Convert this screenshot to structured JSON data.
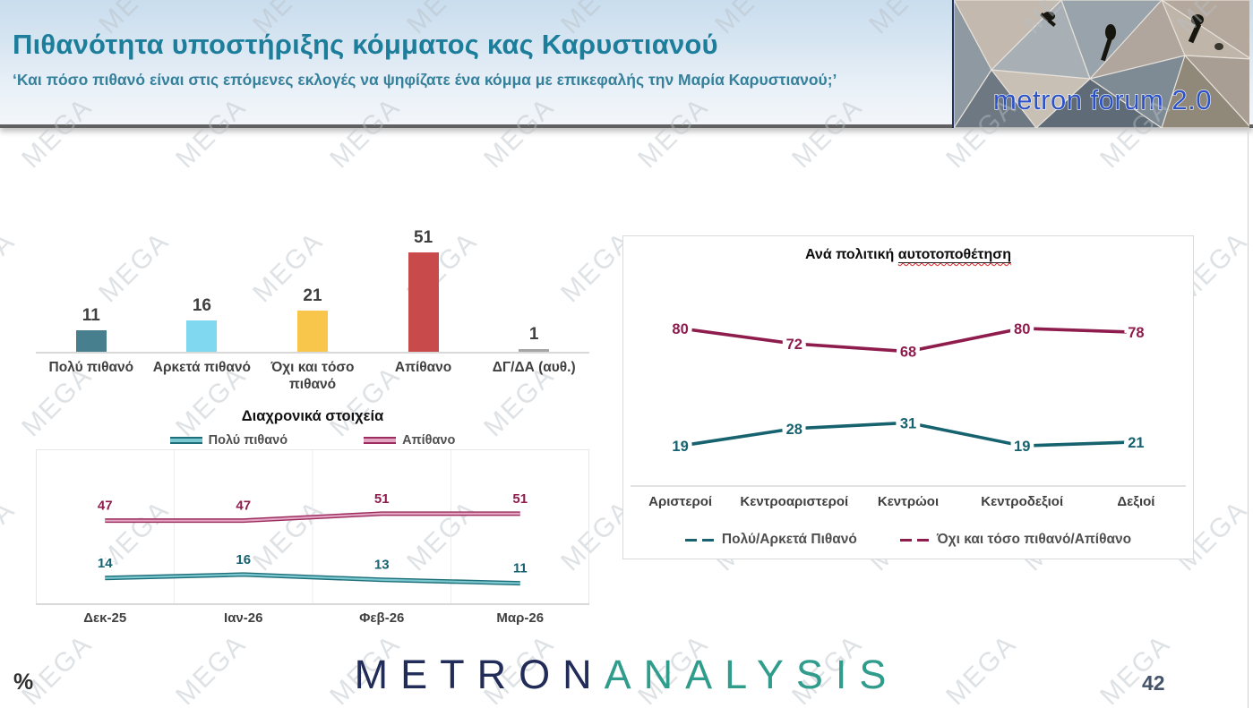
{
  "watermark": {
    "text": "MEGA"
  },
  "header": {
    "title": "Πιθανότητα υποστήριξης κόμματος κας Καρυστιανού",
    "subtitle": "‘Και πόσο πιθανό είναι στις επόμενες εκλογές να ψηφίζατε ένα κόμμα με επικεφαλής την Μαρία Καρυστιανού;’",
    "logo_text": "metron forum 2.0"
  },
  "chart_data": [
    {
      "name": "likelihood-bar-chart",
      "type": "bar",
      "categories": [
        "Πολύ πιθανό",
        "Αρκετά πιθανό",
        "Όχι και τόσο πιθανό",
        "Απίθανο",
        "ΔΓ/ΔΑ (αυθ.)"
      ],
      "values": [
        11,
        16,
        21,
        51,
        1
      ],
      "colors": [
        "#477f8e",
        "#7fd8f0",
        "#f8c64a",
        "#c94a4a",
        "#a6a6a6"
      ],
      "title": "",
      "xlabel": "",
      "ylabel": "",
      "ylim": [
        0,
        65
      ],
      "grid": false,
      "data_labels": true
    },
    {
      "name": "timeline-line-chart",
      "type": "line",
      "title": "Διαχρονικά στοιχεία",
      "x": [
        "Δεκ-25",
        "Ιαν-26",
        "Φεβ-26",
        "Μαρ-26"
      ],
      "series": [
        {
          "name": "Πολύ πιθανό",
          "values": [
            14,
            16,
            13,
            11
          ],
          "color": "#1f6f7a",
          "fill": "#7cc8d0",
          "label_color": "#15616f"
        },
        {
          "name": "Απίθανο",
          "values": [
            47,
            47,
            51,
            51
          ],
          "color": "#9c2d5e",
          "fill": "#e2a6c2",
          "label_color": "#8e1d4e"
        }
      ],
      "legend_position": "top",
      "ylim": [
        0,
        88
      ],
      "grid": "vertical",
      "data_labels": true
    },
    {
      "name": "political-self-placement-line-chart",
      "type": "line",
      "title_prefix": "Ανά πολιτική ",
      "title_underlined": "αυτοτοποθέτηση",
      "categories": [
        "Αριστεροί",
        "Κεντροαριστεροί",
        "Κεντρώοι",
        "Κεντροδεξιοί",
        "Δεξιοί"
      ],
      "series": [
        {
          "name": "Πολύ/Αρκετά Πιθανό",
          "values": [
            19,
            28,
            31,
            19,
            21
          ],
          "color": "#16626e"
        },
        {
          "name": "Όχι και τόσο πιθανό/Απίθανο",
          "values": [
            80,
            72,
            68,
            80,
            78
          ],
          "color": "#8e1d4e"
        }
      ],
      "legend_position": "bottom",
      "ylim": [
        0,
        112
      ],
      "grid": false,
      "data_labels": true
    }
  ],
  "footer": {
    "unit_label": "%",
    "brand_primary": "METRON",
    "brand_secondary": "ANALYSIS",
    "page_number": "42"
  }
}
